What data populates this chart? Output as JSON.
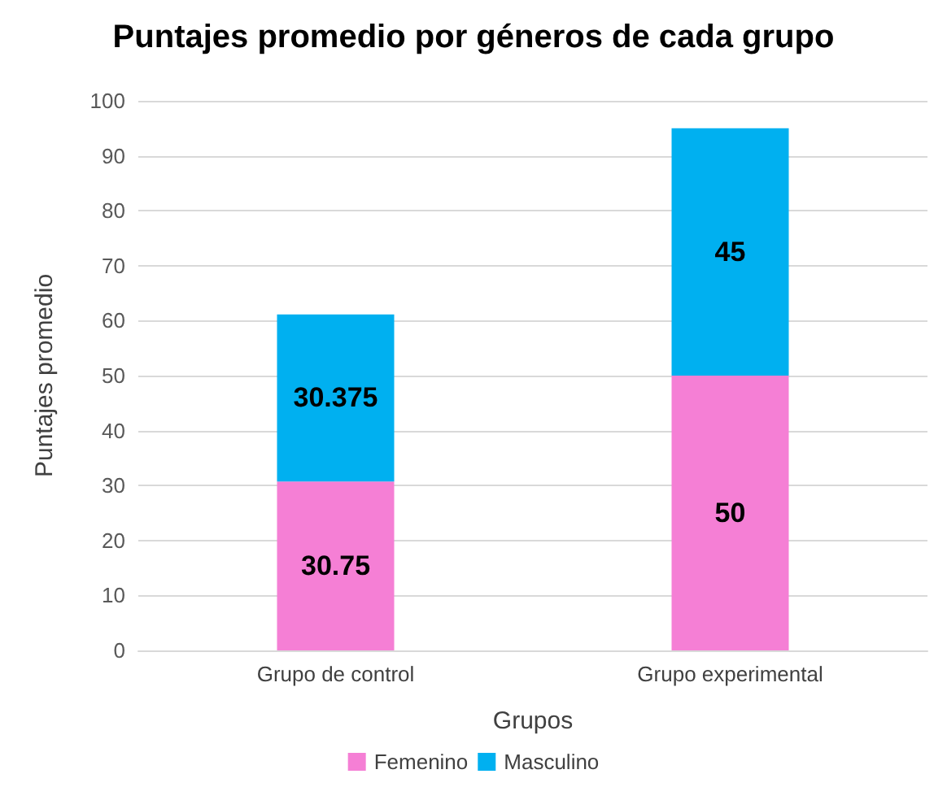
{
  "chart_data": {
    "type": "bar",
    "title": "Puntajes promedio por géneros de cada grupo",
    "xlabel": "Grupos",
    "ylabel": "Puntajes promedio",
    "categories": [
      "Grupo de control",
      "Grupo experimental"
    ],
    "series": [
      {
        "name": "Femenino",
        "color": "#f57fd5",
        "values": [
          30.75,
          50
        ]
      },
      {
        "name": "Masculino",
        "color": "#00b0f0",
        "values": [
          30.375,
          45
        ]
      }
    ],
    "stacked": true,
    "data_labels": true,
    "ylim": [
      0,
      100
    ],
    "yticks": [
      0,
      10,
      20,
      30,
      40,
      50,
      60,
      70,
      80,
      90,
      100
    ],
    "grid": "y",
    "legend": "bottom"
  }
}
